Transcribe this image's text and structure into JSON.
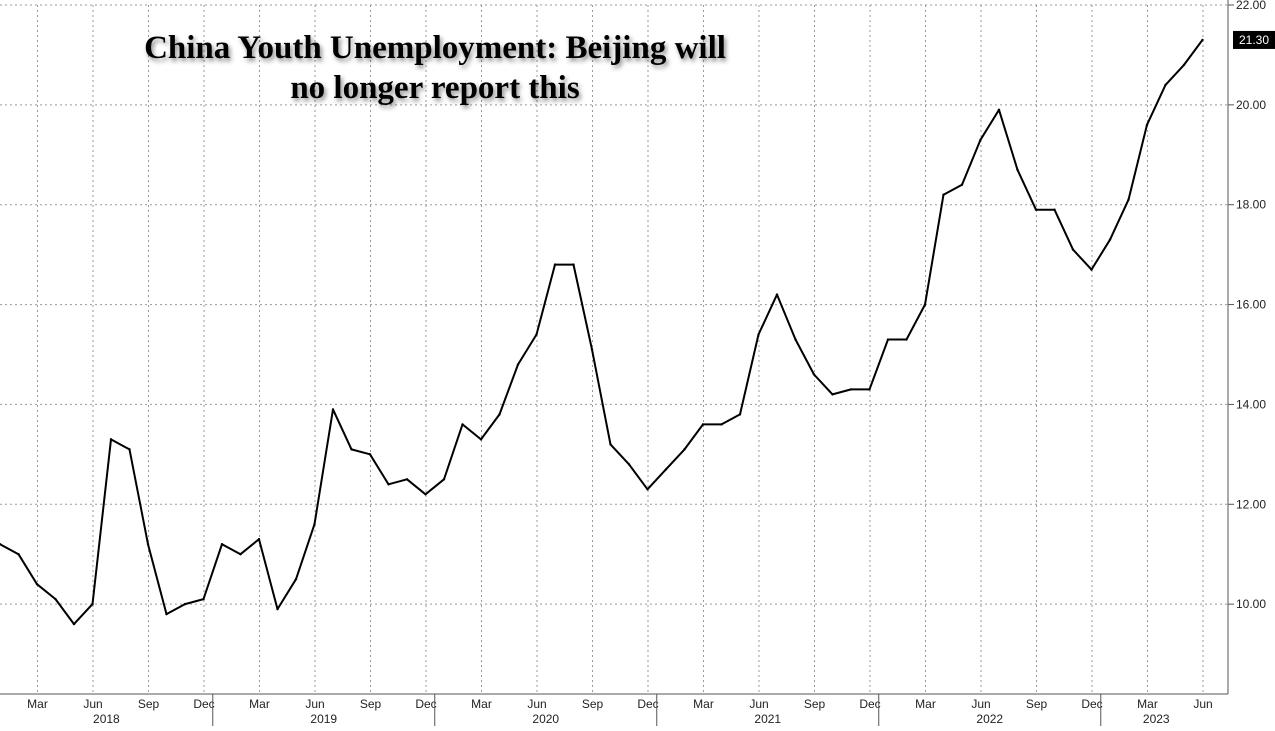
{
  "chart_data": {
    "type": "line",
    "title_lines": [
      "China Youth Unemployment: Beijing will",
      "no longer report this"
    ],
    "ylim": [
      8.2,
      22.0
    ],
    "y_ticks": [
      10,
      12,
      14,
      16,
      18,
      20,
      22
    ],
    "y_tick_labels": [
      "10.00",
      "12.00",
      "14.00",
      "16.00",
      "18.00",
      "20.00",
      "22.00"
    ],
    "month_ticks": [
      "Mar",
      "Jun",
      "Sep",
      "Dec",
      "Mar",
      "Jun",
      "Sep",
      "Dec",
      "Mar",
      "Jun",
      "Sep",
      "Dec",
      "Mar",
      "Jun",
      "Sep",
      "Dec",
      "Mar",
      "Jun",
      "Sep",
      "Dec",
      "Mar",
      "Jun"
    ],
    "years": [
      "2018",
      "2019",
      "2020",
      "2021",
      "2022",
      "2023"
    ],
    "last_value_label": "21.30",
    "grid": true,
    "series": [
      {
        "start": "2018-01",
        "values": [
          11.2,
          11.0,
          10.4,
          10.1,
          9.6,
          10.0,
          13.3,
          13.1,
          11.2,
          9.8,
          10.0,
          10.1,
          11.2,
          11.0,
          11.3,
          9.9,
          10.5,
          11.6,
          13.9,
          13.1,
          13.0,
          12.4,
          12.5,
          12.2,
          12.5,
          13.6,
          13.3,
          13.8,
          14.8,
          15.4,
          16.8,
          16.8,
          15.1,
          13.2,
          12.8,
          12.3,
          12.7,
          13.1,
          13.6,
          13.6,
          13.8,
          15.4,
          16.2,
          15.3,
          14.6,
          14.2,
          14.3,
          14.3,
          15.3,
          15.3,
          16.0,
          18.2,
          18.4,
          19.3,
          19.9,
          18.7,
          17.9,
          17.9,
          17.1,
          16.7,
          17.3,
          18.1,
          19.6,
          20.4,
          20.8,
          21.3
        ]
      }
    ]
  }
}
